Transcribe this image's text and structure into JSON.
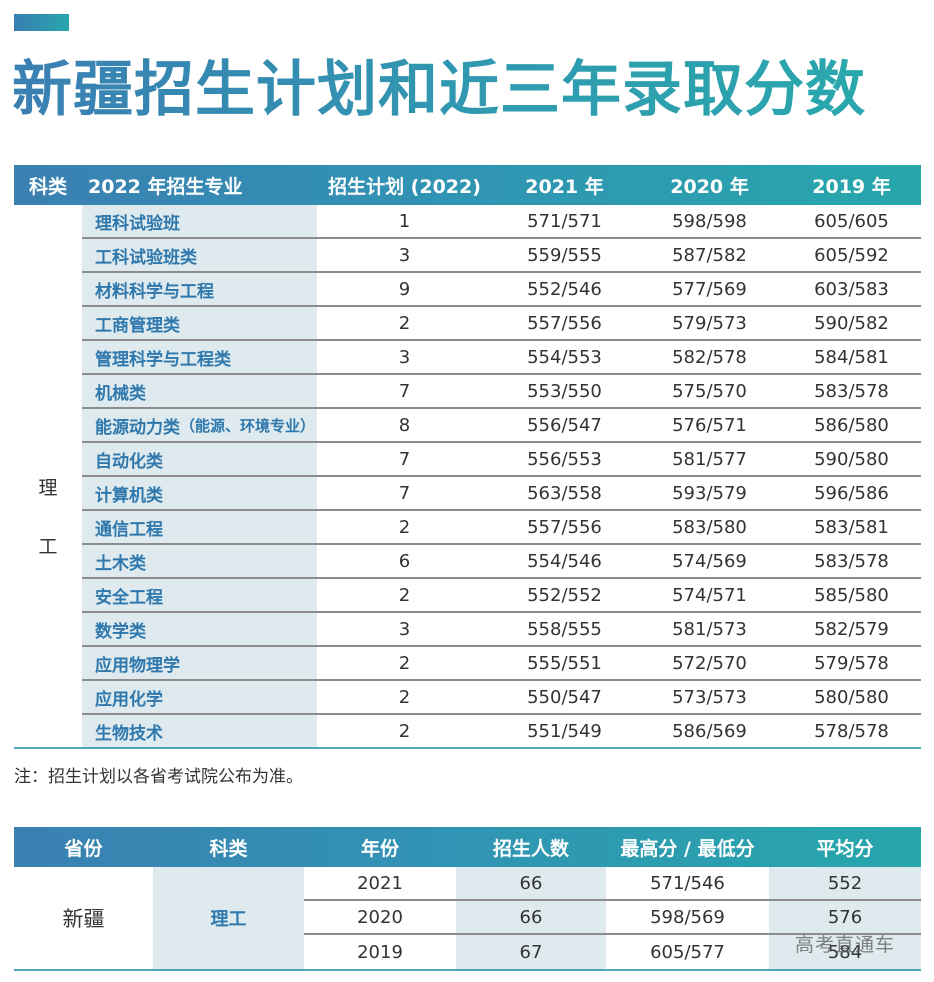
{
  "page": {
    "title": "新疆招生计划和近三年录取分数",
    "accent_colors": {
      "start": "#3a7fb2",
      "end": "#27a7ad"
    },
    "major_text_color": "#2f78ad",
    "shade_color": "#deeaed"
  },
  "plan_table": {
    "headers": [
      "科类",
      "2022 年招生专业",
      "招生计划 (2022)",
      "2021 年",
      "2020 年",
      "2019 年"
    ],
    "category_label": [
      "理",
      "工"
    ],
    "rows": [
      {
        "major": "理科试验班",
        "note": "",
        "plan": "1",
        "y2021": "571/571",
        "y2020": "598/598",
        "y2019": "605/605"
      },
      {
        "major": "工科试验班类",
        "note": "",
        "plan": "3",
        "y2021": "559/555",
        "y2020": "587/582",
        "y2019": "605/592"
      },
      {
        "major": "材料科学与工程",
        "note": "",
        "plan": "9",
        "y2021": "552/546",
        "y2020": "577/569",
        "y2019": "603/583"
      },
      {
        "major": "工商管理类",
        "note": "",
        "plan": "2",
        "y2021": "557/556",
        "y2020": "579/573",
        "y2019": "590/582"
      },
      {
        "major": "管理科学与工程类",
        "note": "",
        "plan": "3",
        "y2021": "554/553",
        "y2020": "582/578",
        "y2019": "584/581"
      },
      {
        "major": "机械类",
        "note": "",
        "plan": "7",
        "y2021": "553/550",
        "y2020": "575/570",
        "y2019": "583/578"
      },
      {
        "major": "能源动力类",
        "note": "（能源、环境专业）",
        "plan": "8",
        "y2021": "556/547",
        "y2020": "576/571",
        "y2019": "586/580"
      },
      {
        "major": "自动化类",
        "note": "",
        "plan": "7",
        "y2021": "556/553",
        "y2020": "581/577",
        "y2019": "590/580"
      },
      {
        "major": "计算机类",
        "note": "",
        "plan": "7",
        "y2021": "563/558",
        "y2020": "593/579",
        "y2019": "596/586"
      },
      {
        "major": "通信工程",
        "note": "",
        "plan": "2",
        "y2021": "557/556",
        "y2020": "583/580",
        "y2019": "583/581"
      },
      {
        "major": "土木类",
        "note": "",
        "plan": "6",
        "y2021": "554/546",
        "y2020": "574/569",
        "y2019": "583/578"
      },
      {
        "major": "安全工程",
        "note": "",
        "plan": "2",
        "y2021": "552/552",
        "y2020": "574/571",
        "y2019": "585/580"
      },
      {
        "major": "数学类",
        "note": "",
        "plan": "3",
        "y2021": "558/555",
        "y2020": "581/573",
        "y2019": "582/579"
      },
      {
        "major": "应用物理学",
        "note": "",
        "plan": "2",
        "y2021": "555/551",
        "y2020": "572/570",
        "y2019": "579/578"
      },
      {
        "major": "应用化学",
        "note": "",
        "plan": "2",
        "y2021": "550/547",
        "y2020": "573/573",
        "y2019": "580/580"
      },
      {
        "major": "生物技术",
        "note": "",
        "plan": "2",
        "y2021": "551/549",
        "y2020": "586/569",
        "y2019": "578/578"
      }
    ],
    "footnote": "注：招生计划以各省考试院公布为准。"
  },
  "summary_table": {
    "headers": [
      "省份",
      "科类",
      "年份",
      "招生人数",
      "最高分 / 最低分",
      "平均分"
    ],
    "province": "新疆",
    "category": "理工",
    "rows": [
      {
        "year": "2021",
        "count": "66",
        "scores": "571/546",
        "avg": "552"
      },
      {
        "year": "2020",
        "count": "66",
        "scores": "598/569",
        "avg": "576"
      },
      {
        "year": "2019",
        "count": "67",
        "scores": "605/577",
        "avg": "584"
      }
    ]
  },
  "watermark": "高考直通车"
}
